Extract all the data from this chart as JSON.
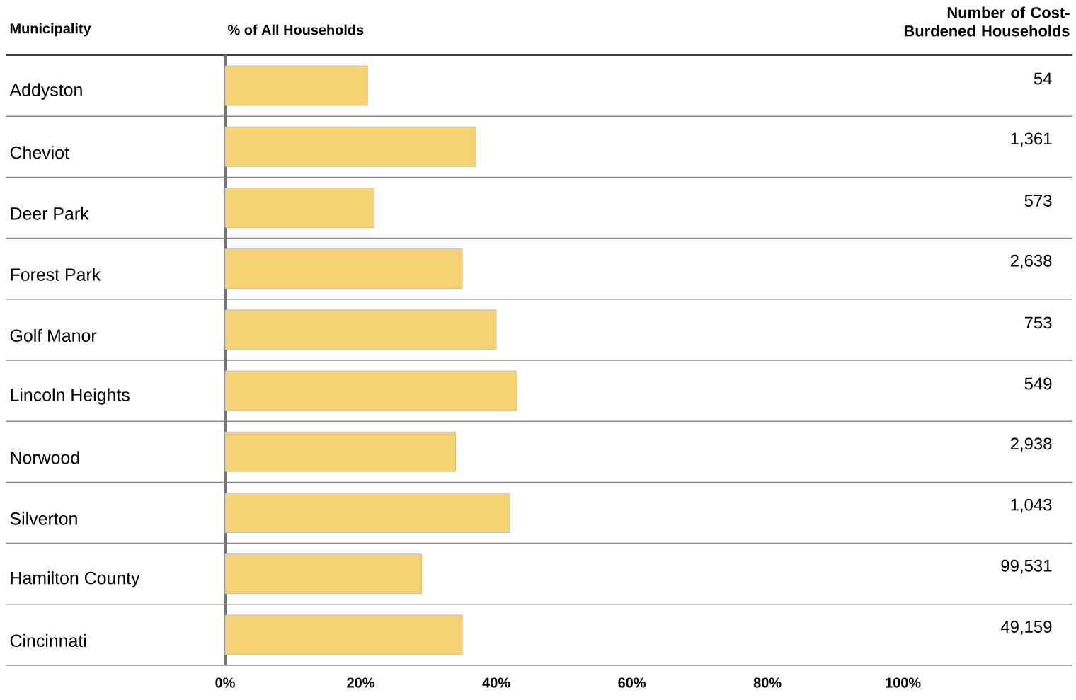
{
  "chart_data": {
    "type": "bar",
    "orientation": "horizontal",
    "ylabel": "Municipality",
    "xlabel": "% of All Households",
    "categories": [
      "Addyston",
      "Cheviot",
      "Deer Park",
      "Forest Park",
      "Golf Manor",
      "Lincoln Heights",
      "Norwood",
      "Silverton",
      "Hamilton County",
      "Cincinnati"
    ],
    "values": [
      21,
      37,
      22,
      35,
      40,
      43,
      34,
      42,
      29,
      35
    ],
    "color": "#f5d374",
    "xlim": [
      0,
      125
    ],
    "xticks": [
      {
        "value": 0,
        "label": "0%"
      },
      {
        "value": 20,
        "label": "20%"
      },
      {
        "value": 40,
        "label": "40%"
      },
      {
        "value": 60,
        "label": "60%"
      },
      {
        "value": 80,
        "label": "80%"
      },
      {
        "value": 100,
        "label": "100%"
      }
    ],
    "annotations": [
      "Number of Cost-Burdened Households",
      "54",
      "1,361",
      "573",
      "2,638",
      "753",
      "549",
      "2,938",
      "1,043",
      "99,531",
      "49,159"
    ]
  }
}
